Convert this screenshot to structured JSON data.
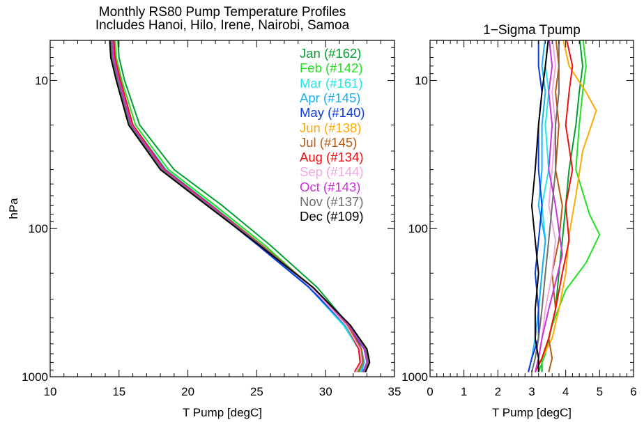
{
  "titles": {
    "left_line1": "Monthly RS80 Pump Temperature Profiles",
    "left_line2": "Includes Hanoi, Hilo, Irene, Nairobi, Samoa",
    "right": "1−Sigma Tpump"
  },
  "chart_data": [
    {
      "type": "line",
      "title": "Monthly RS80 Pump Temperature Profiles",
      "subtitle": "Includes Hanoi, Hilo, Irene, Nairobi, Samoa",
      "xlabel": "T Pump [degC]",
      "ylabel": "hPa",
      "xlim": [
        10,
        35
      ],
      "ylim": [
        1000,
        5
      ],
      "y_scale": "log",
      "y_reversed": true,
      "grid": false,
      "legend_position": "top-right",
      "x_ticks": [
        "10",
        "15",
        "20",
        "25",
        "30",
        "35"
      ],
      "y_ticks": [
        "10",
        "100",
        "1000"
      ],
      "series": [
        {
          "name": "Jan (#162)",
          "color": "#00a030",
          "x": [
            14.9,
            15.0,
            15.4,
            16.5,
            19.0,
            22.5,
            26.0,
            29.4,
            31.7,
            32.6,
            32.8,
            32.4
          ],
          "y": [
            5,
            7,
            10,
            20,
            40,
            70,
            130,
            250,
            450,
            650,
            800,
            930
          ]
        },
        {
          "name": "Feb (#142)",
          "color": "#22e022",
          "x": [
            14.7,
            14.8,
            15.2,
            16.2,
            18.6,
            22.0,
            25.6,
            29.0,
            31.4,
            32.4,
            32.6,
            32.3
          ],
          "y": [
            5,
            7,
            10,
            20,
            40,
            70,
            130,
            250,
            450,
            650,
            800,
            930
          ]
        },
        {
          "name": "Mar (#161)",
          "color": "#20e8e8",
          "x": [
            14.6,
            14.7,
            15.1,
            16.0,
            18.4,
            21.8,
            25.4,
            28.8,
            31.3,
            32.4,
            32.7,
            32.5
          ],
          "y": [
            5,
            7,
            10,
            20,
            40,
            70,
            130,
            250,
            450,
            650,
            800,
            930
          ]
        },
        {
          "name": "Apr (#145)",
          "color": "#1ab0f0",
          "x": [
            14.5,
            14.6,
            15.0,
            16.0,
            18.4,
            21.7,
            25.3,
            28.8,
            31.4,
            32.6,
            32.8,
            32.6
          ],
          "y": [
            5,
            7,
            10,
            20,
            40,
            70,
            130,
            250,
            450,
            650,
            800,
            930
          ]
        },
        {
          "name": "May (#140)",
          "color": "#0a3ae0",
          "x": [
            14.4,
            14.5,
            14.9,
            15.9,
            18.2,
            21.5,
            25.1,
            28.8,
            31.5,
            32.8,
            33.0,
            32.7
          ],
          "y": [
            5,
            7,
            10,
            20,
            40,
            70,
            130,
            250,
            450,
            650,
            800,
            930
          ]
        },
        {
          "name": "Jun (#138)",
          "color": "#ffaa00",
          "x": [
            14.5,
            14.6,
            15.0,
            15.9,
            18.2,
            21.6,
            25.3,
            29.0,
            31.7,
            32.9,
            33.1,
            32.8
          ],
          "y": [
            5,
            7,
            10,
            20,
            40,
            70,
            130,
            250,
            450,
            650,
            800,
            930
          ]
        },
        {
          "name": "Jul (#145)",
          "color": "#b85a10",
          "x": [
            14.6,
            14.7,
            15.1,
            16.0,
            18.3,
            21.7,
            25.4,
            29.1,
            31.6,
            32.6,
            32.7,
            32.4
          ],
          "y": [
            5,
            7,
            10,
            20,
            40,
            70,
            130,
            250,
            450,
            650,
            800,
            930
          ]
        },
        {
          "name": "Aug (#134)",
          "color": "#ee1010",
          "x": [
            14.6,
            14.7,
            15.1,
            16.0,
            18.3,
            21.7,
            25.3,
            29.0,
            31.5,
            32.4,
            32.5,
            32.1
          ],
          "y": [
            5,
            7,
            10,
            20,
            40,
            70,
            130,
            250,
            450,
            650,
            800,
            930
          ]
        },
        {
          "name": "Sep (#144)",
          "color": "#f2a8e0",
          "x": [
            14.5,
            14.6,
            15.0,
            15.9,
            18.2,
            21.6,
            25.3,
            29.0,
            31.5,
            32.5,
            32.6,
            32.2
          ],
          "y": [
            5,
            7,
            10,
            20,
            40,
            70,
            130,
            250,
            450,
            650,
            800,
            930
          ]
        },
        {
          "name": "Oct (#143)",
          "color": "#cc33dd",
          "x": [
            14.5,
            14.6,
            15.0,
            15.9,
            18.2,
            21.6,
            25.3,
            29.1,
            31.7,
            32.8,
            33.0,
            32.7
          ],
          "y": [
            5,
            7,
            10,
            20,
            40,
            70,
            130,
            250,
            450,
            650,
            800,
            930
          ]
        },
        {
          "name": "Nov (#137)",
          "color": "#6e6e6e",
          "x": [
            14.4,
            14.5,
            14.9,
            15.8,
            18.1,
            21.5,
            25.3,
            29.1,
            31.8,
            32.9,
            33.1,
            32.8
          ],
          "y": [
            5,
            7,
            10,
            20,
            40,
            70,
            130,
            250,
            450,
            650,
            800,
            930
          ]
        },
        {
          "name": "Dec (#109)",
          "color": "#000000",
          "x": [
            14.3,
            14.4,
            14.8,
            15.7,
            18.0,
            21.4,
            25.2,
            29.1,
            31.8,
            33.0,
            33.2,
            32.9
          ],
          "y": [
            5,
            7,
            10,
            20,
            40,
            70,
            130,
            250,
            450,
            650,
            800,
            930
          ]
        }
      ]
    },
    {
      "type": "line",
      "title": "1−Sigma Tpump",
      "xlabel": "T Pump [degC]",
      "ylabel": "",
      "xlim": [
        0,
        6
      ],
      "ylim": [
        1000,
        5
      ],
      "y_scale": "log",
      "y_reversed": true,
      "grid": false,
      "x_ticks": [
        "0",
        "1",
        "2",
        "3",
        "4",
        "5",
        "6"
      ],
      "y_ticks": [
        "10",
        "100",
        "1000"
      ],
      "series": [
        {
          "name": "Jan (#162)",
          "color": "#00a030",
          "x": [
            4.4,
            4.5,
            4.4,
            4.3,
            4.1,
            4.0,
            3.9,
            3.8,
            3.7,
            3.5,
            3.3,
            3.3
          ],
          "y": [
            5,
            8,
            12,
            20,
            40,
            70,
            120,
            200,
            350,
            550,
            750,
            930
          ]
        },
        {
          "name": "Feb (#142)",
          "color": "#22e022",
          "x": [
            4.5,
            4.6,
            4.5,
            4.4,
            4.3,
            4.7,
            5.0,
            4.6,
            4.0,
            3.6,
            3.4,
            3.2
          ],
          "y": [
            5,
            8,
            12,
            20,
            40,
            80,
            110,
            170,
            260,
            450,
            700,
            930
          ]
        },
        {
          "name": "Mar (#161)",
          "color": "#20e8e8",
          "x": [
            3.5,
            3.4,
            3.5,
            3.4,
            3.5,
            3.3,
            3.4,
            3.3,
            3.2,
            3.1,
            3.0,
            2.9
          ],
          "y": [
            5,
            8,
            12,
            20,
            40,
            70,
            120,
            200,
            350,
            550,
            750,
            930
          ]
        },
        {
          "name": "Apr (#145)",
          "color": "#1ab0f0",
          "x": [
            3.4,
            3.3,
            3.4,
            3.3,
            3.3,
            3.2,
            3.4,
            3.3,
            3.2,
            3.1,
            3.0,
            2.9
          ],
          "y": [
            5,
            8,
            12,
            20,
            40,
            70,
            120,
            200,
            350,
            550,
            750,
            930
          ]
        },
        {
          "name": "May (#140)",
          "color": "#0a3ae0",
          "x": [
            3.2,
            3.2,
            3.3,
            3.2,
            3.2,
            3.3,
            3.2,
            3.1,
            3.2,
            3.2,
            3.0,
            2.9
          ],
          "y": [
            5,
            8,
            12,
            20,
            40,
            70,
            120,
            200,
            350,
            550,
            750,
            930
          ]
        },
        {
          "name": "Jun (#138)",
          "color": "#ffaa00",
          "x": [
            3.9,
            4.1,
            4.6,
            4.9,
            4.5,
            4.3,
            4.1,
            4.0,
            3.8,
            3.6,
            3.3,
            3.1
          ],
          "y": [
            5,
            8,
            12,
            16,
            30,
            60,
            110,
            200,
            350,
            550,
            750,
            930
          ]
        },
        {
          "name": "Jul (#145)",
          "color": "#b85a10",
          "x": [
            3.7,
            3.8,
            3.7,
            3.8,
            3.7,
            3.9,
            3.8,
            3.6,
            3.7,
            3.5,
            3.6,
            3.5
          ],
          "y": [
            5,
            8,
            12,
            20,
            40,
            70,
            120,
            200,
            350,
            550,
            750,
            930
          ]
        },
        {
          "name": "Aug (#134)",
          "color": "#ee1010",
          "x": [
            4.0,
            4.2,
            4.1,
            4.0,
            4.2,
            4.0,
            4.1,
            3.9,
            3.7,
            3.5,
            3.3,
            3.1
          ],
          "y": [
            5,
            8,
            12,
            20,
            40,
            70,
            120,
            200,
            350,
            550,
            750,
            930
          ]
        },
        {
          "name": "Sep (#144)",
          "color": "#f2a8e0",
          "x": [
            3.6,
            3.7,
            3.6,
            3.7,
            3.6,
            3.5,
            3.7,
            3.6,
            3.4,
            3.3,
            3.2,
            3.1
          ],
          "y": [
            5,
            8,
            12,
            20,
            40,
            70,
            120,
            200,
            350,
            550,
            750,
            930
          ]
        },
        {
          "name": "Oct (#143)",
          "color": "#cc33dd",
          "x": [
            3.5,
            3.6,
            3.5,
            3.6,
            3.5,
            3.7,
            3.9,
            3.7,
            3.5,
            3.3,
            3.2,
            3.1
          ],
          "y": [
            5,
            8,
            12,
            20,
            40,
            70,
            150,
            230,
            350,
            550,
            750,
            930
          ]
        },
        {
          "name": "Nov (#137)",
          "color": "#6e6e6e",
          "x": [
            3.8,
            3.8,
            3.8,
            3.7,
            3.7,
            3.6,
            3.5,
            3.4,
            3.3,
            3.2,
            3.1,
            3.0
          ],
          "y": [
            5,
            8,
            12,
            20,
            40,
            70,
            120,
            200,
            350,
            550,
            750,
            930
          ]
        },
        {
          "name": "Dec (#109)",
          "color": "#000000",
          "x": [
            3.5,
            3.4,
            3.3,
            3.2,
            3.1,
            3.0,
            3.1,
            3.2,
            3.1,
            3.1,
            3.2,
            3.2
          ],
          "y": [
            5,
            8,
            12,
            20,
            40,
            70,
            120,
            200,
            350,
            550,
            750,
            930
          ]
        }
      ]
    }
  ]
}
